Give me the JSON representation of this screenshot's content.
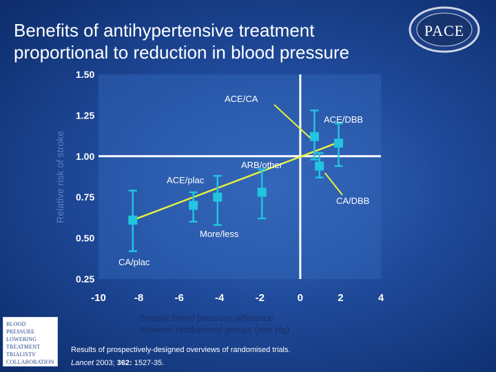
{
  "slide": {
    "title_line1": "Benefits of antihypertensive treatment",
    "title_line2": "proportional to reduction in blood pressure",
    "logo_text": "PACE",
    "footer_note": "Results of prospectively-designed overviews of randomised trials.",
    "footer_cite_journal": "Lancet",
    "footer_cite_year": " 2003; ",
    "footer_cite_volume": "362:",
    "footer_cite_pages": " 1527-35.",
    "bpltt_lines": [
      "Blood",
      "Pressure",
      "Lowering",
      "Treatment",
      "Trialists'",
      "Collaboration"
    ]
  },
  "chart_data": {
    "type": "scatter",
    "title": "",
    "xlabel": "Systolic blood pressure difference between randomised groups (mm Hg)",
    "ylabel": "Relative risk of stroke",
    "xlim": [
      -10,
      4
    ],
    "ylim": [
      0.25,
      1.5
    ],
    "xticks": [
      "-10",
      "-8",
      "-6",
      "-4",
      "-2",
      "0",
      "2",
      "4"
    ],
    "yticks": [
      "1.50",
      "1.25",
      "1.00",
      "0.75",
      "0.50",
      "0.25"
    ],
    "reference_lines": {
      "y": 1.0,
      "x": 0
    },
    "points": [
      {
        "label": "CA/plac",
        "x": -8.3,
        "y": 0.61,
        "lo": 0.42,
        "hi": 0.79
      },
      {
        "label": "ACE/plac",
        "x": -5.3,
        "y": 0.7,
        "lo": 0.6,
        "hi": 0.78
      },
      {
        "label": "More/less",
        "x": -4.1,
        "y": 0.75,
        "lo": 0.58,
        "hi": 0.88
      },
      {
        "label": "ARB/other",
        "x": -1.9,
        "y": 0.78,
        "lo": 0.62,
        "hi": 0.92
      },
      {
        "label": "ACE/CA",
        "x": 0.7,
        "y": 1.12,
        "lo": 0.98,
        "hi": 1.28
      },
      {
        "label": "CA/DBB",
        "x": 0.95,
        "y": 0.94,
        "lo": 0.87,
        "hi": 1.02
      },
      {
        "label": "ACE/DBB",
        "x": 1.9,
        "y": 1.08,
        "lo": 0.94,
        "hi": 1.2
      }
    ],
    "trend_line": {
      "x": [
        -8.3,
        2.0
      ],
      "y": [
        0.61,
        1.09
      ]
    },
    "annotations": [
      "ACE/CA",
      "ACE/DBB",
      "ARB/other",
      "ACE/plac",
      "CA/DBB",
      "More/less",
      "CA/plac"
    ],
    "colors": {
      "marker": "#22c4e0",
      "trend": "#e6f23c",
      "axes": "#ffffff",
      "plot_bg": "#2f63b5"
    }
  }
}
